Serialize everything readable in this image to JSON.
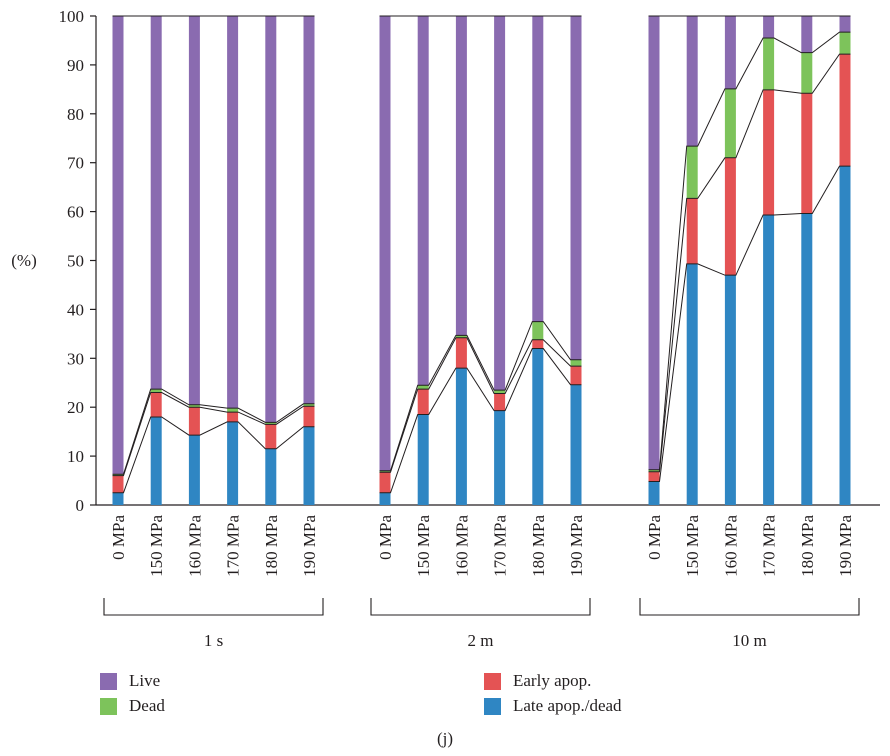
{
  "chart_data": {
    "type": "bar",
    "stacked": true,
    "ylabel": "(%)",
    "ylim": [
      0,
      100
    ],
    "yticks": [
      0,
      10,
      20,
      30,
      40,
      50,
      60,
      70,
      80,
      90,
      100
    ],
    "grid": false,
    "caption": "(j)",
    "groups": [
      {
        "label": "1 s",
        "categories": [
          "0 MPa",
          "150 MPa",
          "160 MPa",
          "170 MPa",
          "180 MPa",
          "190 MPa"
        ]
      },
      {
        "label": "2 m",
        "categories": [
          "0 MPa",
          "150 MPa",
          "160 MPa",
          "170 MPa",
          "180 MPa",
          "190 MPa"
        ]
      },
      {
        "label": "10 m",
        "categories": [
          "0 MPa",
          "150 MPa",
          "160 MPa",
          "170 MPa",
          "180 MPa",
          "190 MPa"
        ]
      }
    ],
    "series": [
      {
        "name": "Late apop./dead",
        "color": "#2f86c3",
        "values": [
          2.5,
          18,
          14.3,
          17,
          11.5,
          16,
          2.5,
          18.5,
          28,
          19.3,
          32,
          24.6,
          4.8,
          49.3,
          47,
          59.3,
          59.6,
          69.3
        ]
      },
      {
        "name": "Early apop.",
        "color": "#e45354",
        "values": [
          3.5,
          5,
          5.7,
          2,
          5,
          4.2,
          4.2,
          5.2,
          6.2,
          3.5,
          1.8,
          3.8,
          2,
          13.4,
          24,
          25.6,
          24.6,
          22.9
        ]
      },
      {
        "name": "Dead",
        "color": "#7dc35b",
        "values": [
          0.3,
          0.7,
          0.5,
          0.8,
          0.4,
          0.5,
          0.3,
          0.8,
          0.5,
          0.7,
          3.7,
          1.3,
          0.4,
          10.7,
          14.1,
          10.6,
          8.3,
          4.5
        ]
      },
      {
        "name": "Live",
        "color": "#8a6bb0",
        "values": [
          93.7,
          76.3,
          79.5,
          80.2,
          83.1,
          79.3,
          93,
          75.5,
          65.3,
          76.5,
          62.5,
          70.3,
          92.8,
          26.6,
          14.9,
          4.5,
          7.5,
          3.3
        ]
      }
    ],
    "legend": {
      "placement": "bottom",
      "items": [
        {
          "label": "Live",
          "color": "#8a6bb0"
        },
        {
          "label": "Early apop.",
          "color": "#e45354"
        },
        {
          "label": "Dead",
          "color": "#7dc35b"
        },
        {
          "label": "Late apop./dead",
          "color": "#2f86c3"
        }
      ]
    }
  }
}
